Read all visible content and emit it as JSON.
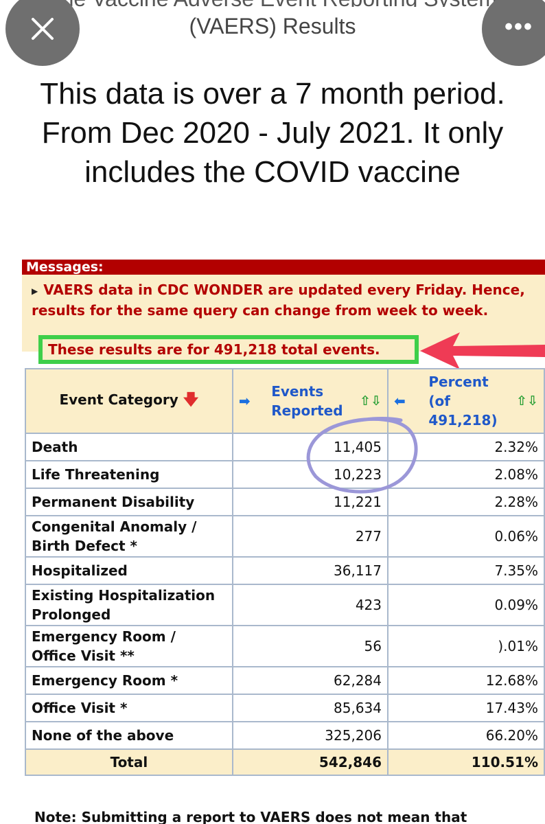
{
  "header": {
    "title_cut": "The Vaccine Adverse Event Reporting System",
    "title": "(VAERS) Results",
    "close_label": "✕",
    "more_label": "•••"
  },
  "caption": "This data is over a 7 month period. From Dec 2020 - July 2021. It only includes the COVID vaccine",
  "shot": {
    "messages_label": "Messages:",
    "message_text": "VAERS data in CDC WONDER are updated every Friday. Hence, results for the same query can change from week to week.",
    "total_text": "These results are for 491,218 total events.",
    "table": {
      "col_category": "Event Category",
      "col_events_1": "Events",
      "col_events_2": "Reported",
      "col_percent_1": "Percent",
      "col_percent_2": "(of",
      "col_percent_3": "491,218)",
      "rows": [
        {
          "category": "Death",
          "events": "11,405",
          "percent": "2.32%"
        },
        {
          "category": "Life Threatening",
          "events": "10,223",
          "percent": "2.08%"
        },
        {
          "category": "Permanent Disability",
          "events": "11,221",
          "percent": "2.28%"
        },
        {
          "category_1": "Congenital Anomaly /",
          "category_2": "Birth Defect *",
          "events": "277",
          "percent": "0.06%"
        },
        {
          "category": "Hospitalized",
          "events": "36,117",
          "percent": "7.35%"
        },
        {
          "category_1": "Existing Hospitalization",
          "category_2": "Prolonged",
          "events": "423",
          "percent": "0.09%"
        },
        {
          "category_1": "Emergency Room /",
          "category_2": "Office Visit **",
          "events": "56",
          "percent": ").01%"
        },
        {
          "category": "Emergency Room *",
          "events": "62,284",
          "percent": "12.68%"
        },
        {
          "category": "Office Visit *",
          "events": "85,634",
          "percent": "17.43%"
        },
        {
          "category": "None of the above",
          "events": "325,206",
          "percent": "66.20%"
        }
      ],
      "total_label": "Total",
      "total_events": "542,846",
      "total_percent": "110.51%"
    },
    "note": "Note: Submitting a report to VAERS does not mean that"
  },
  "colors": {
    "header_red": "#b20000",
    "highlight_green": "#3ecf4a",
    "annotation_purple": "#9b97d8",
    "arrow_red": "#ef3b55",
    "table_fill": "#fbeec9"
  }
}
